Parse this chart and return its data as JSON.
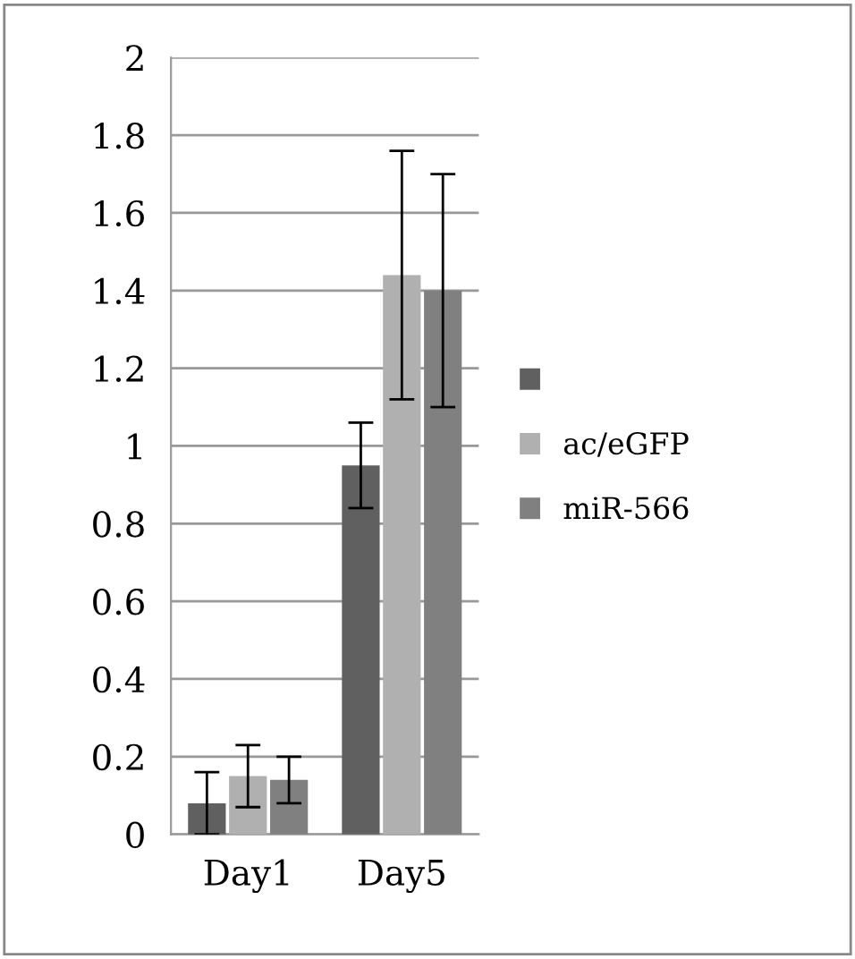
{
  "chart_data": {
    "type": "bar",
    "categories": [
      "Day1",
      "Day5"
    ],
    "series": [
      {
        "color": "#606060",
        "values": [
          0.08,
          0.95
        ],
        "errors": [
          0.08,
          0.11
        ]
      },
      {
        "name": "ac/eGFP",
        "color": "#b0b0b0",
        "values": [
          0.15,
          1.44
        ],
        "errors": [
          0.08,
          0.32
        ]
      },
      {
        "name": "miR-566",
        "color": "#808080",
        "values": [
          0.14,
          1.4
        ],
        "errors": [
          0.06,
          0.3
        ]
      }
    ],
    "ylim": [
      0,
      2
    ],
    "yticks": [
      0,
      0.2,
      0.4,
      0.6,
      0.8,
      1,
      1.2,
      1.4,
      1.6,
      1.8,
      2
    ],
    "grid": "y",
    "legend": "right"
  }
}
